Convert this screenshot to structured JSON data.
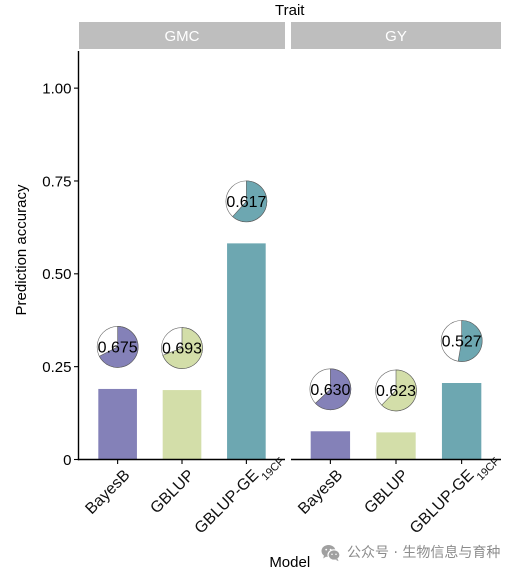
{
  "chart_data": {
    "type": "bar",
    "facet_title": "Trait",
    "xlabel": "Model",
    "ylabel": "Prediction accuracy",
    "ylim": [
      0,
      1.1
    ],
    "yticks": [
      0,
      0.25,
      0.5,
      0.75,
      1.0
    ],
    "ytick_labels": [
      "0",
      "0.25",
      "0.50",
      "0.75",
      "1.00"
    ],
    "categories": [
      {
        "label": "BayesB",
        "sub": ""
      },
      {
        "label": "GBLUP",
        "sub": ""
      },
      {
        "label": "GBLUP-GE",
        "sub": "19CF"
      }
    ],
    "colors": [
      "#8481b8",
      "#d3dea9",
      "#6da7b1"
    ],
    "facets": [
      {
        "name": "GMC",
        "values": [
          0.19,
          0.187,
          0.582
        ],
        "pie_values": [
          0.675,
          0.693,
          0.617
        ],
        "pie_labels": [
          "0.675",
          "0.693",
          "0.617"
        ]
      },
      {
        "name": "GY",
        "values": [
          0.076,
          0.073,
          0.206
        ],
        "pie_values": [
          0.63,
          0.623,
          0.527
        ],
        "pie_labels": [
          "0.630",
          "0.623",
          "0.527"
        ]
      }
    ],
    "grid": false,
    "legend": false
  },
  "watermark": {
    "icon": "wechat-icon",
    "text": "公众号 · 生物信息与育种"
  }
}
